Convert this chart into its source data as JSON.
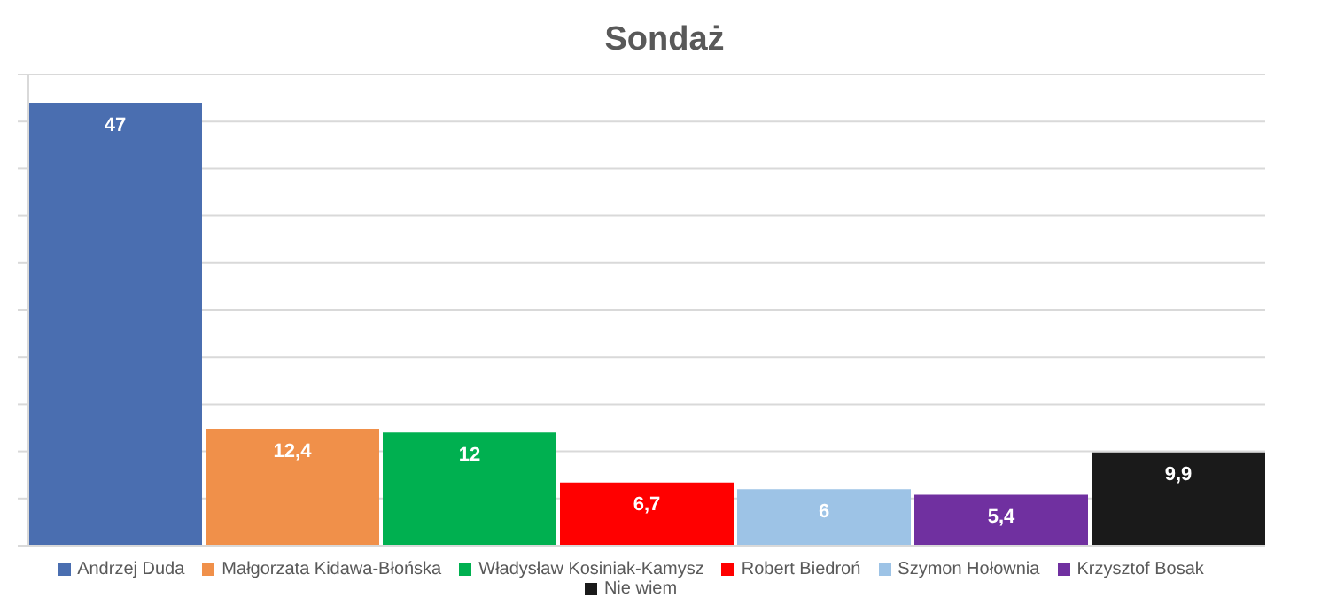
{
  "chart_data": {
    "type": "bar",
    "title": "Sondaż",
    "categories": [
      null
    ],
    "series": [
      {
        "name": "Andrzej Duda",
        "color": "#4a6eb0",
        "values": [
          47
        ],
        "value_labels": [
          "47"
        ]
      },
      {
        "name": "Małgorzata Kidawa-Błońska",
        "color": "#f0904a",
        "values": [
          12.4
        ],
        "value_labels": [
          "12,4"
        ]
      },
      {
        "name": "Władysław Kosiniak-Kamysz",
        "color": "#00b050",
        "values": [
          12
        ],
        "value_labels": [
          "12"
        ]
      },
      {
        "name": "Robert Biedroń",
        "color": "#ff0000",
        "values": [
          6.7
        ],
        "value_labels": [
          "6,7"
        ]
      },
      {
        "name": "Szymon Hołownia",
        "color": "#9dc3e6",
        "values": [
          6
        ],
        "value_labels": [
          "6"
        ]
      },
      {
        "name": "Krzysztof Bosak",
        "color": "#7030a0",
        "values": [
          5.4
        ],
        "value_labels": [
          "5,4"
        ]
      },
      {
        "name": "Nie wiem",
        "color": "#1a1a1a",
        "values": [
          9.9
        ],
        "value_labels": [
          "9,9"
        ]
      }
    ],
    "ylim": [
      0,
      50
    ],
    "yticks": [
      {
        "value": 0,
        "label": null
      },
      {
        "value": 5,
        "label": null
      },
      {
        "value": 10,
        "label": null
      },
      {
        "value": 15,
        "label": null
      },
      {
        "value": 20,
        "label": null
      },
      {
        "value": 25,
        "label": null
      },
      {
        "value": 30,
        "label": null
      },
      {
        "value": 35,
        "label": null
      },
      {
        "value": 40,
        "label": null
      },
      {
        "value": 45,
        "label": null
      },
      {
        "value": 50,
        "label": null
      }
    ],
    "grid": "y",
    "legend": "bottom"
  }
}
